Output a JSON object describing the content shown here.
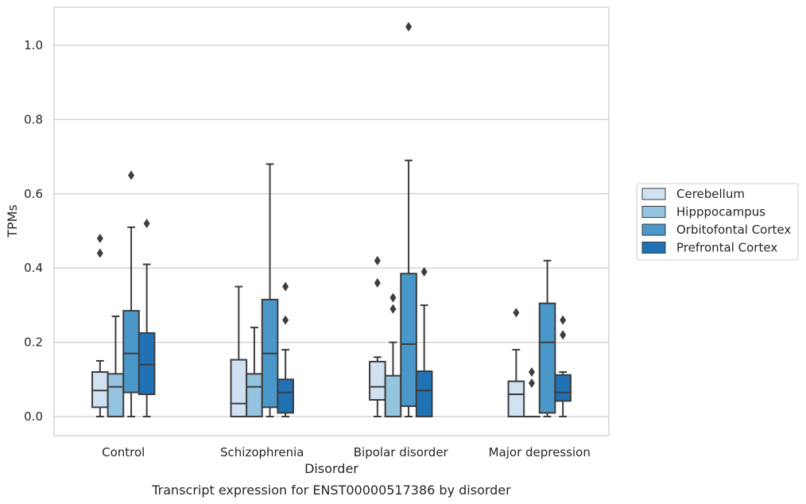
{
  "chart_data": {
    "type": "boxplot",
    "title": "Transcript expression for ENST00000517386 by disorder",
    "xlabel": "Disorder",
    "ylabel": "TPMs",
    "ylim": [
      -0.05,
      1.1
    ],
    "yticks": [
      0.0,
      0.2,
      0.4,
      0.6,
      0.8,
      1.0
    ],
    "ytick_labels": [
      "0.0",
      "0.2",
      "0.4",
      "0.6",
      "0.8",
      "1.0"
    ],
    "grid": "horizontal",
    "legend_position": "right",
    "categories": [
      "Control",
      "Schizophrenia",
      "Bipolar disorder",
      "Major depression"
    ],
    "series": [
      {
        "name": "Cerebellum",
        "color": "#d0e1f2",
        "boxes": [
          {
            "q1": 0.025,
            "median": 0.07,
            "q3": 0.12,
            "whisker_low": 0.0,
            "whisker_high": 0.15,
            "outliers": [
              0.44,
              0.48
            ]
          },
          {
            "q1": 0.0,
            "median": 0.035,
            "q3": 0.153,
            "whisker_low": 0.0,
            "whisker_high": 0.35,
            "outliers": []
          },
          {
            "q1": 0.045,
            "median": 0.08,
            "q3": 0.148,
            "whisker_low": 0.0,
            "whisker_high": 0.16,
            "outliers": [
              0.36,
              0.42
            ]
          },
          {
            "q1": 0.0,
            "median": 0.06,
            "q3": 0.095,
            "whisker_low": 0.0,
            "whisker_high": 0.18,
            "outliers": [
              0.28
            ]
          }
        ]
      },
      {
        "name": "Hipppocampus",
        "color": "#94c4df",
        "boxes": [
          {
            "q1": 0.0,
            "median": 0.08,
            "q3": 0.115,
            "whisker_low": 0.0,
            "whisker_high": 0.27,
            "outliers": []
          },
          {
            "q1": 0.0,
            "median": 0.08,
            "q3": 0.115,
            "whisker_low": 0.0,
            "whisker_high": 0.24,
            "outliers": []
          },
          {
            "q1": 0.0,
            "median": 0.0,
            "q3": 0.11,
            "whisker_low": 0.0,
            "whisker_high": 0.2,
            "outliers": [
              0.29,
              0.32
            ]
          },
          {
            "q1": 0.0,
            "median": 0.0,
            "q3": 0.0,
            "whisker_low": 0.0,
            "whisker_high": 0.0,
            "outliers": [
              0.09,
              0.12
            ]
          }
        ]
      },
      {
        "name": "Orbitofontal Cortex",
        "color": "#4a98c9",
        "boxes": [
          {
            "q1": 0.065,
            "median": 0.17,
            "q3": 0.285,
            "whisker_low": 0.0,
            "whisker_high": 0.51,
            "outliers": [
              0.65
            ]
          },
          {
            "q1": 0.025,
            "median": 0.17,
            "q3": 0.315,
            "whisker_low": 0.0,
            "whisker_high": 0.68,
            "outliers": []
          },
          {
            "q1": 0.028,
            "median": 0.195,
            "q3": 0.385,
            "whisker_low": 0.0,
            "whisker_high": 0.69,
            "outliers": [
              1.05
            ]
          },
          {
            "q1": 0.01,
            "median": 0.2,
            "q3": 0.305,
            "whisker_low": 0.0,
            "whisker_high": 0.42,
            "outliers": []
          }
        ]
      },
      {
        "name": "Prefrontal Cortex",
        "color": "#2171b5",
        "boxes": [
          {
            "q1": 0.06,
            "median": 0.14,
            "q3": 0.225,
            "whisker_low": 0.0,
            "whisker_high": 0.41,
            "outliers": [
              0.52
            ]
          },
          {
            "q1": 0.01,
            "median": 0.065,
            "q3": 0.1,
            "whisker_low": 0.0,
            "whisker_high": 0.18,
            "outliers": [
              0.26,
              0.35
            ]
          },
          {
            "q1": 0.0,
            "median": 0.07,
            "q3": 0.122,
            "whisker_low": 0.0,
            "whisker_high": 0.3,
            "outliers": [
              0.39
            ]
          },
          {
            "q1": 0.042,
            "median": 0.065,
            "q3": 0.112,
            "whisker_low": 0.0,
            "whisker_high": 0.12,
            "outliers": [
              0.22,
              0.26
            ]
          }
        ]
      }
    ]
  }
}
